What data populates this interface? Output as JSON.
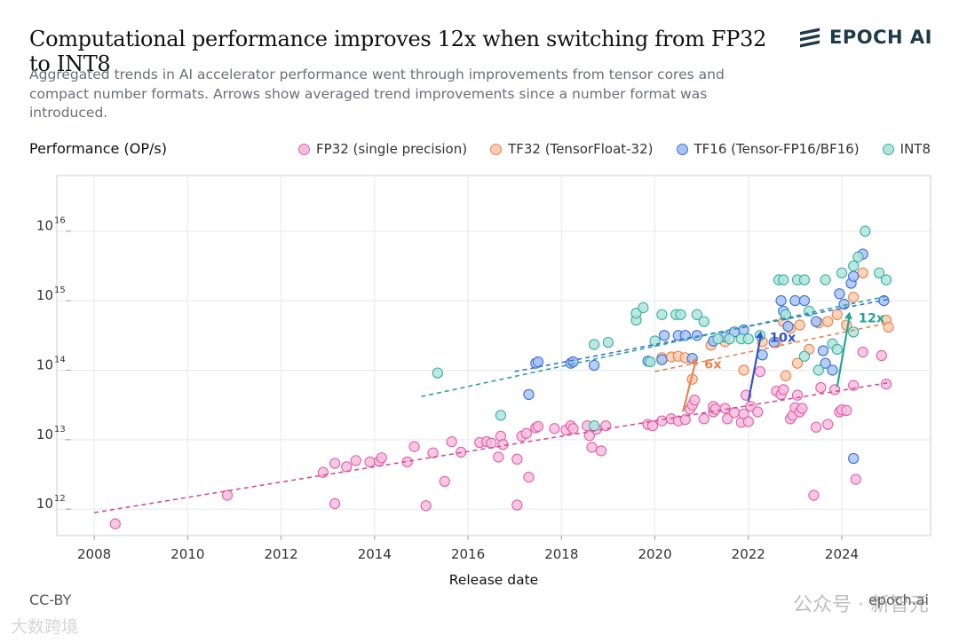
{
  "header": {
    "title": "Computational performance improves 12x when switching from FP32 to INT8",
    "subtitle": "Aggregated trends in AI accelerator performance went through improvements from tensor cores and compact number formats. Arrows show averaged trend improvements since a number format was introduced.",
    "logo_text": "EPOCH AI"
  },
  "footer": {
    "license": "CC-BY",
    "site": "epoch.ai",
    "watermark": "公众号 · 新智元",
    "watermark2": "大数跨境"
  },
  "chart_data": {
    "type": "scatter",
    "title": "Computational performance improves 12x when switching from FP32 to INT8",
    "xlabel": "Release date",
    "ylabel": "Performance (OP/s)",
    "xlim": [
      2007.2,
      2025.9
    ],
    "ylim_log10": [
      11.62,
      16.8
    ],
    "yscale": "log",
    "grid": true,
    "legend_position": "top-right",
    "x_ticks": [
      2008,
      2010,
      2012,
      2014,
      2016,
      2018,
      2020,
      2022,
      2024
    ],
    "x_tick_labels": [
      "2008",
      "2010",
      "2012",
      "2014",
      "2016",
      "2018",
      "2020",
      "2022",
      "2024"
    ],
    "y_ticks_log10": [
      12,
      13,
      14,
      15,
      16
    ],
    "y_tick_labels": [
      "10",
      "10",
      "10",
      "10",
      "10"
    ],
    "y_tick_exponents": [
      "12",
      "13",
      "14",
      "15",
      "16"
    ],
    "series": [
      {
        "name": "FP32 (single precision)",
        "color": "#e060a8",
        "fill": "#f6bede",
        "points": [
          [
            2008.45,
            11.79
          ],
          [
            2010.85,
            12.2
          ],
          [
            2012.9,
            12.53
          ],
          [
            2013.15,
            12.66
          ],
          [
            2013.4,
            12.61
          ],
          [
            2013.6,
            12.7
          ],
          [
            2013.15,
            12.08
          ],
          [
            2013.9,
            12.68
          ],
          [
            2014.1,
            12.69
          ],
          [
            2014.15,
            12.74
          ],
          [
            2014.7,
            12.68
          ],
          [
            2014.85,
            12.9
          ],
          [
            2015.1,
            12.05
          ],
          [
            2015.25,
            12.81
          ],
          [
            2015.5,
            12.4
          ],
          [
            2015.65,
            12.97
          ],
          [
            2015.85,
            12.82
          ],
          [
            2016.25,
            12.96
          ],
          [
            2016.4,
            12.97
          ],
          [
            2016.5,
            12.95
          ],
          [
            2016.65,
            12.75
          ],
          [
            2016.7,
            13.05
          ],
          [
            2016.75,
            12.93
          ],
          [
            2017.05,
            12.06
          ],
          [
            2017.05,
            12.72
          ],
          [
            2017.15,
            13.05
          ],
          [
            2017.25,
            13.09
          ],
          [
            2017.3,
            12.46
          ],
          [
            2017.45,
            13.17
          ],
          [
            2017.5,
            13.19
          ],
          [
            2017.85,
            13.16
          ],
          [
            2018.1,
            13.14
          ],
          [
            2018.2,
            13.2
          ],
          [
            2018.25,
            13.16
          ],
          [
            2018.55,
            13.2
          ],
          [
            2018.6,
            13.06
          ],
          [
            2018.65,
            12.89
          ],
          [
            2018.75,
            13.15
          ],
          [
            2018.85,
            12.84
          ],
          [
            2018.95,
            13.2
          ],
          [
            2019.85,
            13.22
          ],
          [
            2019.95,
            13.2
          ],
          [
            2020.15,
            13.27
          ],
          [
            2020.35,
            13.3
          ],
          [
            2020.5,
            13.27
          ],
          [
            2020.65,
            13.29
          ],
          [
            2020.75,
            13.44
          ],
          [
            2020.8,
            13.5
          ],
          [
            2020.85,
            13.57
          ],
          [
            2021.05,
            13.3
          ],
          [
            2021.25,
            13.4
          ],
          [
            2021.25,
            13.48
          ],
          [
            2021.3,
            13.44
          ],
          [
            2021.5,
            13.45
          ],
          [
            2021.55,
            13.3
          ],
          [
            2021.7,
            13.39
          ],
          [
            2021.85,
            13.25
          ],
          [
            2021.9,
            13.37
          ],
          [
            2021.95,
            13.64
          ],
          [
            2022.0,
            13.26
          ],
          [
            2022.05,
            13.48
          ],
          [
            2022.2,
            13.4
          ],
          [
            2022.25,
            13.98
          ],
          [
            2022.6,
            13.7
          ],
          [
            2022.7,
            13.65
          ],
          [
            2022.75,
            13.72
          ],
          [
            2022.9,
            13.3
          ],
          [
            2022.95,
            13.35
          ],
          [
            2023.0,
            13.46
          ],
          [
            2023.05,
            13.64
          ],
          [
            2023.1,
            13.4
          ],
          [
            2023.15,
            13.45
          ],
          [
            2023.4,
            12.2
          ],
          [
            2023.45,
            13.18
          ],
          [
            2023.55,
            13.75
          ],
          [
            2023.7,
            13.22
          ],
          [
            2023.85,
            13.72
          ],
          [
            2023.95,
            13.4
          ],
          [
            2024.0,
            13.43
          ],
          [
            2024.1,
            13.42
          ],
          [
            2024.25,
            13.78
          ],
          [
            2024.3,
            12.43
          ],
          [
            2024.45,
            14.26
          ],
          [
            2024.85,
            14.21
          ],
          [
            2024.95,
            13.8
          ]
        ]
      },
      {
        "name": "TF32 (TensorFloat-32)",
        "color": "#e8834e",
        "fill": "#f9cdb2",
        "points": [
          [
            2020.15,
            14.18
          ],
          [
            2020.35,
            14.19
          ],
          [
            2020.5,
            14.2
          ],
          [
            2020.65,
            14.18
          ],
          [
            2020.8,
            13.87
          ],
          [
            2021.2,
            14.36
          ],
          [
            2021.5,
            14.41
          ],
          [
            2021.9,
            14.0
          ],
          [
            2022.3,
            14.41
          ],
          [
            2022.6,
            14.4
          ],
          [
            2022.75,
            14.7
          ],
          [
            2022.8,
            13.92
          ],
          [
            2022.9,
            14.6
          ],
          [
            2023.05,
            14.1
          ],
          [
            2023.1,
            14.65
          ],
          [
            2023.3,
            14.3
          ],
          [
            2023.5,
            14.68
          ],
          [
            2023.7,
            14.7
          ],
          [
            2023.9,
            14.8
          ],
          [
            2024.1,
            14.65
          ],
          [
            2024.25,
            15.05
          ],
          [
            2024.45,
            15.4
          ],
          [
            2024.95,
            14.72
          ],
          [
            2025.0,
            14.62
          ]
        ]
      },
      {
        "name": "TF16 (Tensor-FP16/BF16)",
        "color": "#3d6fd8",
        "fill": "#a9c4f2",
        "points": [
          [
            2017.3,
            13.65
          ],
          [
            2017.45,
            14.1
          ],
          [
            2017.5,
            14.12
          ],
          [
            2018.2,
            14.1
          ],
          [
            2018.25,
            14.12
          ],
          [
            2018.7,
            14.07
          ],
          [
            2019.85,
            14.13
          ],
          [
            2020.15,
            14.15
          ],
          [
            2020.2,
            14.5
          ],
          [
            2020.5,
            14.5
          ],
          [
            2020.65,
            14.5
          ],
          [
            2020.8,
            14.17
          ],
          [
            2020.9,
            14.5
          ],
          [
            2021.25,
            14.42
          ],
          [
            2021.5,
            14.48
          ],
          [
            2021.7,
            14.55
          ],
          [
            2021.9,
            14.58
          ],
          [
            2022.3,
            14.22
          ],
          [
            2022.55,
            14.4
          ],
          [
            2022.7,
            15.0
          ],
          [
            2022.75,
            14.85
          ],
          [
            2022.85,
            14.63
          ],
          [
            2023.0,
            15.0
          ],
          [
            2023.2,
            15.0
          ],
          [
            2023.45,
            14.7
          ],
          [
            2023.6,
            14.28
          ],
          [
            2023.65,
            14.1
          ],
          [
            2023.8,
            14.0
          ],
          [
            2023.95,
            15.1
          ],
          [
            2024.05,
            14.95
          ],
          [
            2024.2,
            15.25
          ],
          [
            2024.25,
            15.35
          ],
          [
            2024.45,
            15.67
          ],
          [
            2024.9,
            15.0
          ],
          [
            2024.25,
            12.73
          ]
        ]
      },
      {
        "name": "INT8",
        "color": "#3ab0a2",
        "fill": "#b2e4dc",
        "points": [
          [
            2015.35,
            13.96
          ],
          [
            2016.7,
            13.35
          ],
          [
            2018.7,
            13.2
          ],
          [
            2018.7,
            14.37
          ],
          [
            2019.0,
            14.4
          ],
          [
            2019.6,
            14.72
          ],
          [
            2019.6,
            14.82
          ],
          [
            2019.75,
            14.9
          ],
          [
            2019.9,
            14.12
          ],
          [
            2020.0,
            14.42
          ],
          [
            2020.15,
            14.8
          ],
          [
            2020.45,
            14.8
          ],
          [
            2020.55,
            14.8
          ],
          [
            2020.9,
            14.8
          ],
          [
            2021.05,
            14.7
          ],
          [
            2021.35,
            14.45
          ],
          [
            2021.6,
            14.45
          ],
          [
            2021.85,
            14.45
          ],
          [
            2022.0,
            14.45
          ],
          [
            2022.25,
            14.5
          ],
          [
            2022.65,
            15.3
          ],
          [
            2022.75,
            15.3
          ],
          [
            2022.8,
            14.8
          ],
          [
            2023.05,
            15.3
          ],
          [
            2023.2,
            15.3
          ],
          [
            2023.3,
            14.85
          ],
          [
            2023.5,
            14.0
          ],
          [
            2023.65,
            15.3
          ],
          [
            2023.8,
            14.38
          ],
          [
            2023.9,
            14.3
          ],
          [
            2024.0,
            15.4
          ],
          [
            2024.25,
            15.5
          ],
          [
            2024.35,
            15.63
          ],
          [
            2024.5,
            16.0
          ],
          [
            2024.8,
            15.4
          ],
          [
            2024.95,
            15.3
          ],
          [
            2024.25,
            14.55
          ],
          [
            2023.2,
            14.2
          ]
        ]
      }
    ],
    "trend_lines": [
      {
        "name": "FP32 trend",
        "color": "#d04f98",
        "x": [
          2008.0,
          2025.0
        ],
        "y": [
          11.95,
          13.82
        ]
      },
      {
        "name": "TF32 trend",
        "color": "#e8834e",
        "x": [
          2020.0,
          2025.0
        ],
        "y": [
          13.98,
          14.68
        ]
      },
      {
        "name": "TF16 trend",
        "color": "#3d6fd8",
        "x": [
          2017.0,
          2025.0
        ],
        "y": [
          13.98,
          15.02
        ]
      },
      {
        "name": "INT8 trend",
        "color": "#27a595",
        "x": [
          2015.0,
          2025.0
        ],
        "y": [
          13.62,
          15.07
        ]
      }
    ],
    "arrows": [
      {
        "label": "6x",
        "color": "#e8834e",
        "x": 2020.6,
        "y_from": 13.4,
        "y_to": 14.18
      },
      {
        "label": "10x",
        "color": "#2f56c8",
        "x": 2022.0,
        "y_from": 13.55,
        "y_to": 14.56
      },
      {
        "label": "12x",
        "color": "#27a595",
        "x": 2023.9,
        "y_from": 13.76,
        "y_to": 14.84
      }
    ]
  }
}
